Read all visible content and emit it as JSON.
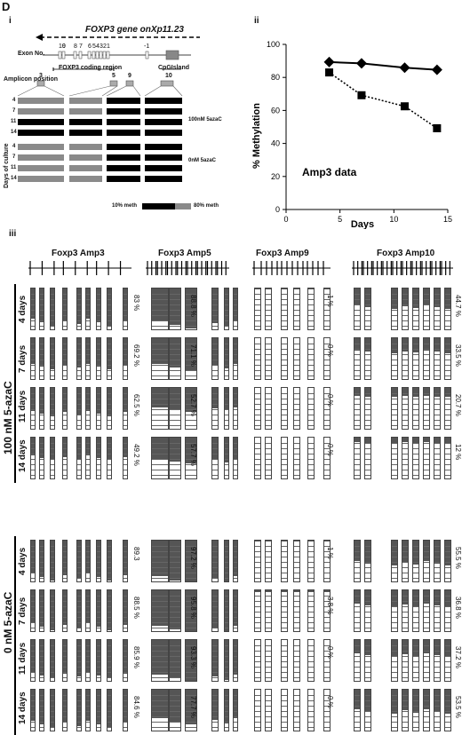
{
  "panel_letter": "D",
  "sub_i": "i",
  "sub_ii": "ii",
  "sub_iii": "iii",
  "gene_title": "FOXP3 gene onXp11.23",
  "exon_label": "Exon No.",
  "exon_numbers": [
    "10",
    "9",
    "8",
    "7",
    "6",
    "5",
    "4",
    "3",
    "2",
    "1",
    "-1"
  ],
  "coding_region": "FOXP3 coding region",
  "cpg_island": "CpGIsland",
  "amplicon_position": "Amplicon position",
  "amplicon_numbers": [
    "3",
    "5",
    "9",
    "10"
  ],
  "days_of_culture": "Days of culture",
  "day_rows": [
    "4",
    "7",
    "11",
    "14",
    "4",
    "7",
    "11",
    "14"
  ],
  "treat_100": "100nM 5azaC",
  "treat_0": "0nM 5azaC",
  "legend_10": "10% meth",
  "legend_80": "80% meth",
  "chart_data": {
    "type": "line",
    "xlabel": "Days",
    "ylabel": "% Methylation",
    "xlim": [
      0,
      15
    ],
    "ylim": [
      0,
      100
    ],
    "xticks": [
      "0",
      "5",
      "10",
      "15"
    ],
    "yticks": [
      "0",
      "20",
      "40",
      "60",
      "80",
      "100"
    ],
    "annotation": "Amp3 data",
    "x": [
      4,
      7,
      11,
      14
    ],
    "series": [
      {
        "marker": "diamond",
        "style": "solid",
        "values": [
          89.3,
          88.5,
          85.9,
          84.6
        ]
      },
      {
        "marker": "square",
        "style": "dotted",
        "values": [
          83,
          69.2,
          62.5,
          49.2
        ]
      }
    ]
  },
  "amp_titles": [
    "Foxp3 Amp3",
    "Foxp3 Amp5",
    "Foxp3 Amp9",
    "Foxp3 Amp10"
  ],
  "group_100": "100 nM 5-azaC",
  "group_0": "0 nM 5-azaC",
  "day_labels": [
    "4 days",
    "7 days",
    "11 days",
    "14 days"
  ],
  "pct_100": [
    [
      "83 %",
      "88.8 %",
      "1 %",
      "44.7 %"
    ],
    [
      "69.2 %",
      "71.1 %",
      "0 %",
      "33.5 %"
    ],
    [
      "62.5 %",
      "52.7 %",
      "0 %",
      "20.7 %"
    ],
    [
      "49.2 %",
      "57.7 %",
      "0 %",
      "12 %"
    ]
  ],
  "pct_0": [
    [
      "89.3",
      "97.2 %",
      "1 %",
      "55.5 %"
    ],
    [
      "88.5 %",
      "95.8 %",
      "3.8 %",
      "36.8 %"
    ],
    [
      "85.9 %",
      "93.3 %",
      "0 %",
      "37.2 %"
    ],
    [
      "84.6 %",
      "77.7 %",
      "0 %",
      "53.5 %"
    ]
  ]
}
